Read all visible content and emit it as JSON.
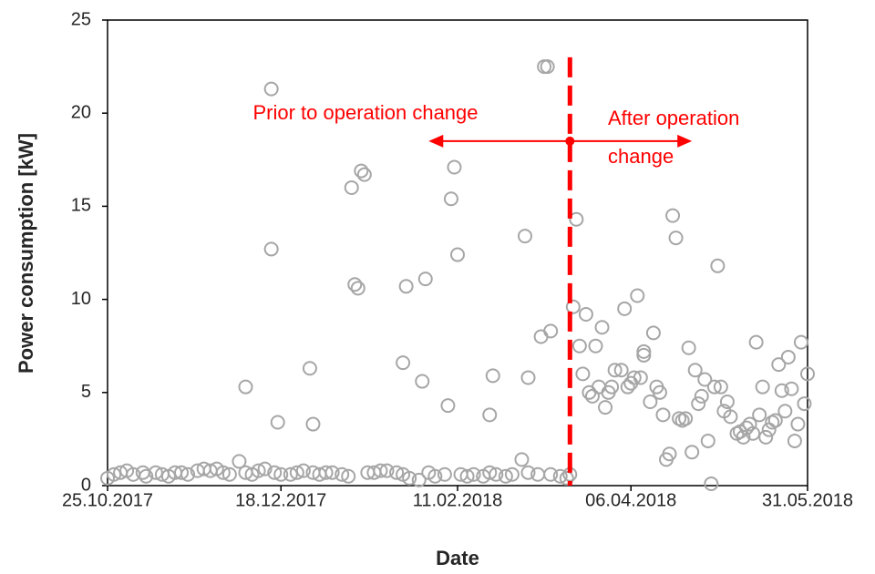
{
  "chart_data": {
    "type": "scatter",
    "x_label": "Date",
    "y_label": "Power consumption  [kW]",
    "color": "#a6a6a6",
    "xlim": [
      "2017-10-25",
      "2018-05-31"
    ],
    "xticks": [
      {
        "value": "2017-10-25",
        "label": "25.10.2017"
      },
      {
        "value": "2017-12-18",
        "label": "18.12.2017"
      },
      {
        "value": "2018-02-11",
        "label": "11.02.2018"
      },
      {
        "value": "2018-04-06",
        "label": "06.04.2018"
      },
      {
        "value": "2018-05-31",
        "label": "31.05.2018"
      }
    ],
    "ylim": [
      0,
      25
    ],
    "yticks": [
      0,
      5,
      10,
      15,
      20,
      25
    ],
    "x": [
      "2017-10-25",
      "2017-10-27",
      "2017-10-29",
      "2017-10-31",
      "2017-11-02",
      "2017-11-05",
      "2017-11-06",
      "2017-11-09",
      "2017-11-11",
      "2017-11-13",
      "2017-11-15",
      "2017-11-17",
      "2017-11-19",
      "2017-11-22",
      "2017-11-24",
      "2017-11-26",
      "2017-11-28",
      "2017-11-30",
      "2017-12-02",
      "2017-12-05",
      "2017-12-07",
      "2017-12-09",
      "2017-12-11",
      "2017-12-13",
      "2017-12-16",
      "2017-12-18",
      "2017-12-21",
      "2017-12-23",
      "2017-12-25",
      "2017-12-28",
      "2017-12-30",
      "2018-01-01",
      "2018-01-03",
      "2018-01-06",
      "2018-01-08",
      "2018-01-14",
      "2018-01-16",
      "2018-01-18",
      "2018-01-20",
      "2018-01-23",
      "2018-01-25",
      "2018-01-27",
      "2018-01-30",
      "2018-02-02",
      "2018-02-04",
      "2018-02-07",
      "2018-02-12",
      "2018-02-14",
      "2018-02-16",
      "2018-02-19",
      "2018-02-21",
      "2018-02-23",
      "2018-02-26",
      "2018-02-28",
      "2018-03-03",
      "2018-03-05",
      "2018-03-08",
      "2018-03-12",
      "2018-03-15",
      "2018-03-17",
      "2018-03-18",
      "2017-12-07",
      "2017-12-15",
      "2017-12-15",
      "2017-12-17",
      "2017-12-27",
      "2017-12-28",
      "2018-01-09",
      "2018-01-10",
      "2018-01-11",
      "2018-01-12",
      "2018-01-13",
      "2018-01-25",
      "2018-01-26",
      "2018-01-31",
      "2018-02-01",
      "2018-02-08",
      "2018-02-09",
      "2018-02-10",
      "2018-02-11",
      "2018-02-21",
      "2018-02-22",
      "2018-03-04",
      "2018-03-05",
      "2018-03-09",
      "2018-03-10",
      "2018-03-11",
      "2018-03-12",
      "2018-03-19",
      "2018-03-20",
      "2018-03-21",
      "2018-03-22",
      "2018-03-23",
      "2018-03-24",
      "2018-03-25",
      "2018-03-26",
      "2018-03-27",
      "2018-03-28",
      "2018-03-29",
      "2018-03-30",
      "2018-03-31",
      "2018-04-01",
      "2018-04-03",
      "2018-04-04",
      "2018-04-05",
      "2018-04-06",
      "2018-04-07",
      "2018-04-08",
      "2018-04-09",
      "2018-04-10",
      "2018-04-10",
      "2018-04-12",
      "2018-04-13",
      "2018-04-14",
      "2018-04-15",
      "2018-04-16",
      "2018-04-17",
      "2018-04-18",
      "2018-04-19",
      "2018-04-20",
      "2018-04-21",
      "2018-04-22",
      "2018-04-23",
      "2018-04-24",
      "2018-04-25",
      "2018-04-26",
      "2018-04-27",
      "2018-04-28",
      "2018-04-29",
      "2018-04-30",
      "2018-05-01",
      "2018-05-02",
      "2018-05-03",
      "2018-05-04",
      "2018-05-05",
      "2018-05-06",
      "2018-05-07",
      "2018-05-09",
      "2018-05-10",
      "2018-05-11",
      "2018-05-12",
      "2018-05-13",
      "2018-05-14",
      "2018-05-15",
      "2018-05-16",
      "2018-05-17",
      "2018-05-18",
      "2018-05-19",
      "2018-05-20",
      "2018-05-21",
      "2018-05-22",
      "2018-05-23",
      "2018-05-24",
      "2018-05-25",
      "2018-05-26",
      "2018-05-27",
      "2018-05-28",
      "2018-05-29",
      "2018-05-30",
      "2018-05-31"
    ],
    "values": [
      0.4,
      0.6,
      0.7,
      0.8,
      0.6,
      0.7,
      0.5,
      0.7,
      0.6,
      0.5,
      0.7,
      0.7,
      0.6,
      0.8,
      0.9,
      0.8,
      0.9,
      0.7,
      0.6,
      1.3,
      0.7,
      0.6,
      0.8,
      0.9,
      0.7,
      0.6,
      0.6,
      0.7,
      0.8,
      0.7,
      0.6,
      0.7,
      0.7,
      0.6,
      0.5,
      0.7,
      0.7,
      0.8,
      0.8,
      0.7,
      0.6,
      0.4,
      0.3,
      0.7,
      0.5,
      0.6,
      0.6,
      0.5,
      0.6,
      0.5,
      0.7,
      0.6,
      0.5,
      0.6,
      1.4,
      0.7,
      0.6,
      0.6,
      0.5,
      0.4,
      0.6,
      5.3,
      21.3,
      12.7,
      3.4,
      6.3,
      3.3,
      16.0,
      10.8,
      10.6,
      16.9,
      16.7,
      6.6,
      10.7,
      5.6,
      11.1,
      4.3,
      15.4,
      17.1,
      12.4,
      3.8,
      5.9,
      13.4,
      5.8,
      8.0,
      22.5,
      22.5,
      8.3,
      9.6,
      14.3,
      7.5,
      6.0,
      9.2,
      5.0,
      4.8,
      7.5,
      5.3,
      8.5,
      4.2,
      5.0,
      5.3,
      6.2,
      6.2,
      9.5,
      5.3,
      5.5,
      5.8,
      10.2,
      5.8,
      7.2,
      7.0,
      4.5,
      8.2,
      5.3,
      5.0,
      3.8,
      1.4,
      1.7,
      14.5,
      13.3,
      3.6,
      3.5,
      3.6,
      7.4,
      1.8,
      6.2,
      4.4,
      4.8,
      5.7,
      2.4,
      0.1,
      5.3,
      11.8,
      5.3,
      4.0,
      4.5,
      3.7,
      2.8,
      2.9,
      2.6,
      3.1,
      3.3,
      2.8,
      7.7,
      3.8,
      5.3,
      2.6,
      3.0,
      3.4,
      3.5,
      6.5,
      5.1,
      4.0,
      6.9,
      5.2,
      2.4,
      3.3,
      7.7,
      4.4,
      6.0
    ],
    "annotations": {
      "change_line": {
        "x": "2018-03-18",
        "y_top": 23,
        "color": "#ff0000"
      },
      "arrow": {
        "y": 18.5,
        "from": "2018-03-18",
        "left_to": "2018-02-02",
        "right_to": "2018-04-25",
        "color": "#ff0000"
      },
      "before_text": "Prior to operation change",
      "after_text": [
        "After operation",
        "change"
      ]
    }
  }
}
